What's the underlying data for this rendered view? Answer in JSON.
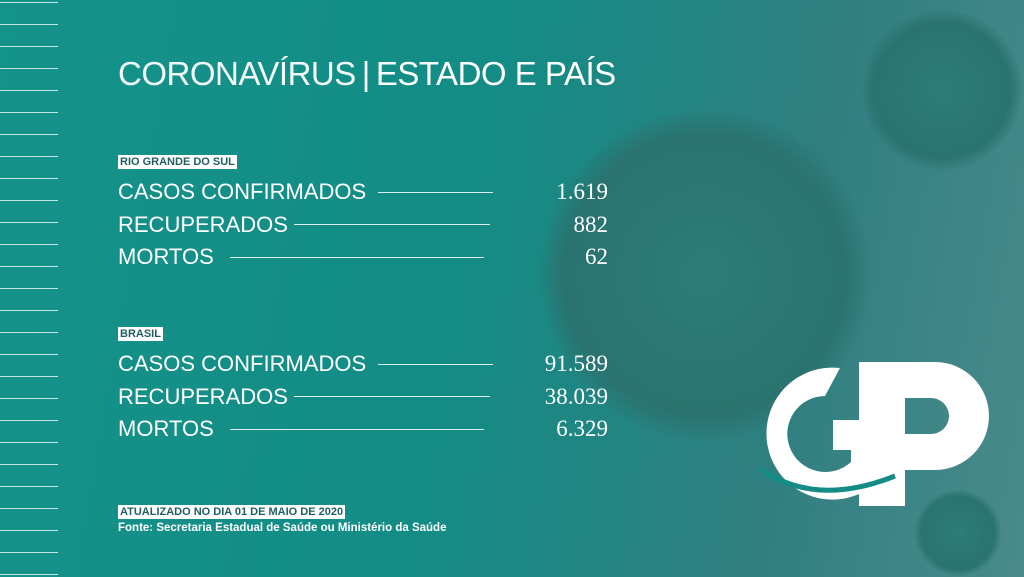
{
  "title": {
    "light": "CORONAVÍRUS",
    "separator": "|",
    "bold": "ESTADO E PAÍS"
  },
  "sections": [
    {
      "heading": "RIO GRANDE DO SUL",
      "rows": [
        {
          "label": "CASOS CONFIRMADOS",
          "value": "1.619"
        },
        {
          "label": "RECUPERADOS",
          "value": "882"
        },
        {
          "label": "MORTOS",
          "value": "62"
        }
      ]
    },
    {
      "heading": "BRASIL",
      "rows": [
        {
          "label": "CASOS CONFIRMADOS",
          "value": "91.589"
        },
        {
          "label": "RECUPERADOS",
          "value": "38.039"
        },
        {
          "label": "MORTOS",
          "value": "6.329"
        }
      ]
    }
  ],
  "footer": {
    "updated": "ATUALIZADO NO DIA 01 DE MAIO DE 2020",
    "source": "Fonte: Secretaria Estadual de Saúde ou Ministério da Saúde"
  },
  "logo": {
    "text": "GP"
  },
  "colors": {
    "background": "#14938a",
    "text": "#ffffff",
    "tag_text": "#1f5f62"
  }
}
